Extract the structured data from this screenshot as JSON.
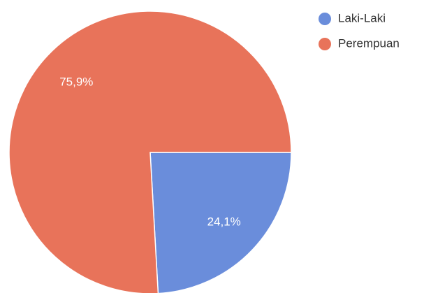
{
  "chart_data": {
    "type": "pie",
    "categories": [
      "Laki-Laki",
      "Perempuan"
    ],
    "values": [
      24.1,
      75.9
    ],
    "value_labels": [
      "24,1%",
      "75,9%"
    ],
    "colors": [
      "#6a8ddb",
      "#e8735a"
    ],
    "legend": "top-right"
  }
}
